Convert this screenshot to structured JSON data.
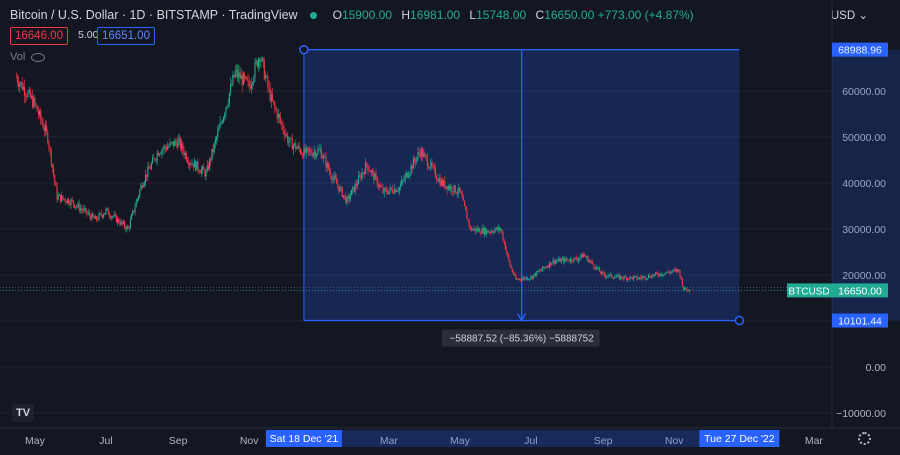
{
  "header": {
    "symbol": "Bitcoin / U.S. Dollar · 1D · BITSTAMP · TradingView",
    "open_label": "O",
    "open": "15900.00",
    "high_label": "H",
    "high": "16981.00",
    "low_label": "L",
    "low": "15748.00",
    "close_label": "C",
    "close": "16650.00",
    "change": "+773.00 (+4.87%)",
    "bid": "16646.00",
    "spread": "5.00",
    "ask": "16651.00",
    "volume_label": "Vol",
    "currency": "USD"
  },
  "colors": {
    "background": "#131722",
    "up": "#22ab94",
    "down": "#f23645",
    "measure": "#2962ff",
    "text": "#d1d4dc"
  },
  "chart_data": {
    "type": "candlestick",
    "y_ticks": [
      "60000.00",
      "50000.00",
      "40000.00",
      "30000.00",
      "20000.00",
      "0.00",
      "−10000.00"
    ],
    "x_ticks": [
      "May",
      "Jul",
      "Sep",
      "Nov",
      "Mar",
      "May",
      "Jul",
      "Sep",
      "Nov",
      "Mar"
    ],
    "ylim": [
      -13000,
      72000
    ],
    "series_path": [
      [
        "2021-04-15",
        63000
      ],
      [
        "2021-05-01",
        57000
      ],
      [
        "2021-05-12",
        50000
      ],
      [
        "2021-05-20",
        37000
      ],
      [
        "2021-06-01",
        36000
      ],
      [
        "2021-06-22",
        32000
      ],
      [
        "2021-07-01",
        34000
      ],
      [
        "2021-07-20",
        30000
      ],
      [
        "2021-08-01",
        40000
      ],
      [
        "2021-08-15",
        47000
      ],
      [
        "2021-09-01",
        49000
      ],
      [
        "2021-09-10",
        45000
      ],
      [
        "2021-09-25",
        42000
      ],
      [
        "2021-10-10",
        55000
      ],
      [
        "2021-10-20",
        64000
      ],
      [
        "2021-11-01",
        61000
      ],
      [
        "2021-11-10",
        68000
      ],
      [
        "2021-11-20",
        58000
      ],
      [
        "2021-12-05",
        49000
      ],
      [
        "2021-12-18",
        46500
      ],
      [
        "2022-01-01",
        47000
      ],
      [
        "2022-01-10",
        42000
      ],
      [
        "2022-01-24",
        36000
      ],
      [
        "2022-02-10",
        44000
      ],
      [
        "2022-02-24",
        38000
      ],
      [
        "2022-03-10",
        39000
      ],
      [
        "2022-03-28",
        47000
      ],
      [
        "2022-04-15",
        40000
      ],
      [
        "2022-05-01",
        38000
      ],
      [
        "2022-05-10",
        30000
      ],
      [
        "2022-05-25",
        29500
      ],
      [
        "2022-06-05",
        30000
      ],
      [
        "2022-06-13",
        22000
      ],
      [
        "2022-06-18",
        19000
      ],
      [
        "2022-07-01",
        19500
      ],
      [
        "2022-07-20",
        23000
      ],
      [
        "2022-08-10",
        23500
      ],
      [
        "2022-08-15",
        24400
      ],
      [
        "2022-09-01",
        20000
      ],
      [
        "2022-09-15",
        19500
      ],
      [
        "2022-10-01",
        19300
      ],
      [
        "2022-10-25",
        20500
      ],
      [
        "2022-11-05",
        21000
      ],
      [
        "2022-11-09",
        17000
      ],
      [
        "2022-11-14",
        16650
      ]
    ],
    "last_price": 16650,
    "last_price_label": "16650.00",
    "symbol_tag": "BTCUSD",
    "measure": {
      "start_date": "2021-12-18",
      "end_date": "2022-12-27",
      "top_price": 68988.96,
      "bottom_price": 10101.44,
      "top_label": "68988.96",
      "bottom_label": "10101.44",
      "start_label": "Sat 18 Dec '21",
      "end_label": "Tue 27 Dec '22",
      "stats": "−58887.52 (−85.36%) −5888752"
    }
  }
}
